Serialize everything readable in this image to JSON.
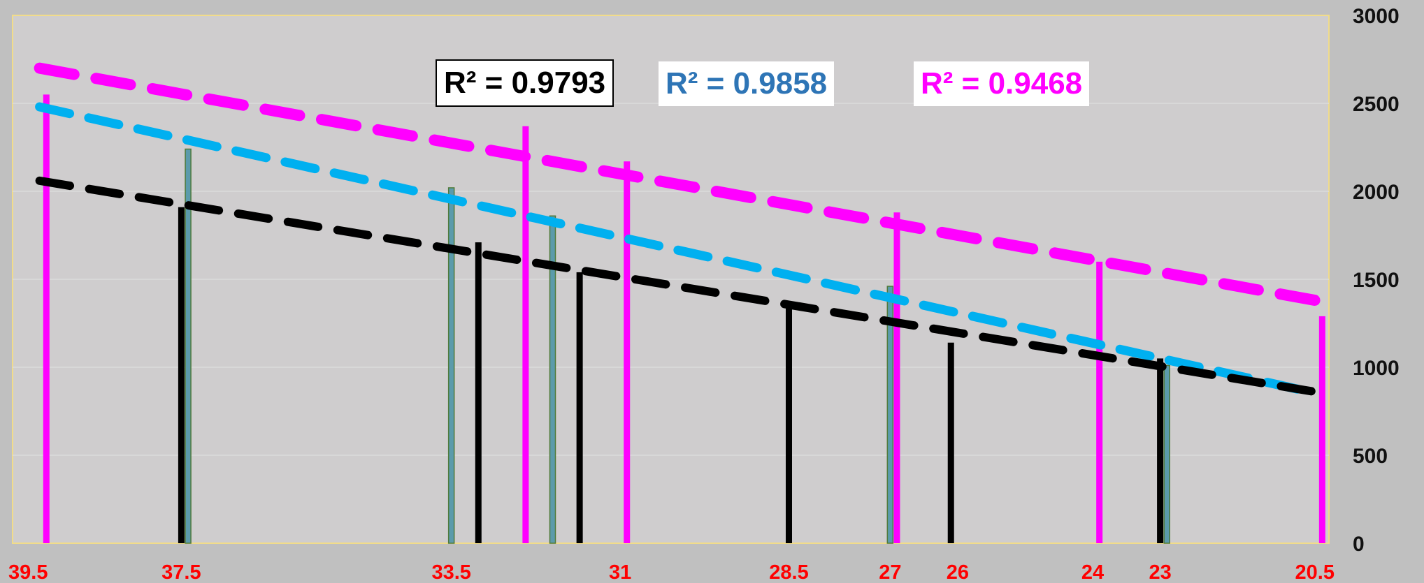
{
  "chart_data": {
    "type": "bar",
    "x_axis": {
      "reversed": true,
      "range": [
        40,
        20.5
      ],
      "tick_labels": [
        "39.5",
        "37.5",
        "33.5",
        "31",
        "28.5",
        "27",
        "26",
        "24",
        "23",
        "20.5"
      ]
    },
    "y_axis": {
      "position": "right",
      "range": [
        0,
        3000
      ],
      "ticks": [
        0,
        500,
        1000,
        1500,
        2000,
        2500,
        3000
      ],
      "grid": true
    },
    "series": [
      {
        "key": "magenta",
        "color": "#ff00ff",
        "points": [
          {
            "x": 39.5,
            "y": 2550
          },
          {
            "x": 32.4,
            "y": 2370
          },
          {
            "x": 30.9,
            "y": 2170
          },
          {
            "x": 26.9,
            "y": 1880
          },
          {
            "x": 23.9,
            "y": 1600
          },
          {
            "x": 20.6,
            "y": 1290
          }
        ],
        "trend": {
          "x0": 39.6,
          "y0": 2700,
          "x1": 20.7,
          "y1": 1380
        },
        "r2_label": "R² = 0.9468"
      },
      {
        "key": "teal",
        "color": "#5b9bab",
        "trend_color": "#00b0f0",
        "points": [
          {
            "x": 37.4,
            "y": 2240
          },
          {
            "x": 33.5,
            "y": 2020
          },
          {
            "x": 32.0,
            "y": 1860
          },
          {
            "x": 27.0,
            "y": 1460
          },
          {
            "x": 22.9,
            "y": 1010
          }
        ],
        "trend": {
          "x0": 39.6,
          "y0": 2480,
          "x1": 20.9,
          "y1": 870
        },
        "r2_label": "R² = 0.9858"
      },
      {
        "key": "black",
        "color": "#000000",
        "points": [
          {
            "x": 37.5,
            "y": 1910
          },
          {
            "x": 33.1,
            "y": 1710
          },
          {
            "x": 31.6,
            "y": 1540
          },
          {
            "x": 28.5,
            "y": 1360
          },
          {
            "x": 26.1,
            "y": 1140
          },
          {
            "x": 23.0,
            "y": 1050
          }
        ],
        "trend": {
          "x0": 39.6,
          "y0": 2060,
          "x1": 20.7,
          "y1": 860
        },
        "r2_label": "R² = 0.9793"
      }
    ]
  }
}
